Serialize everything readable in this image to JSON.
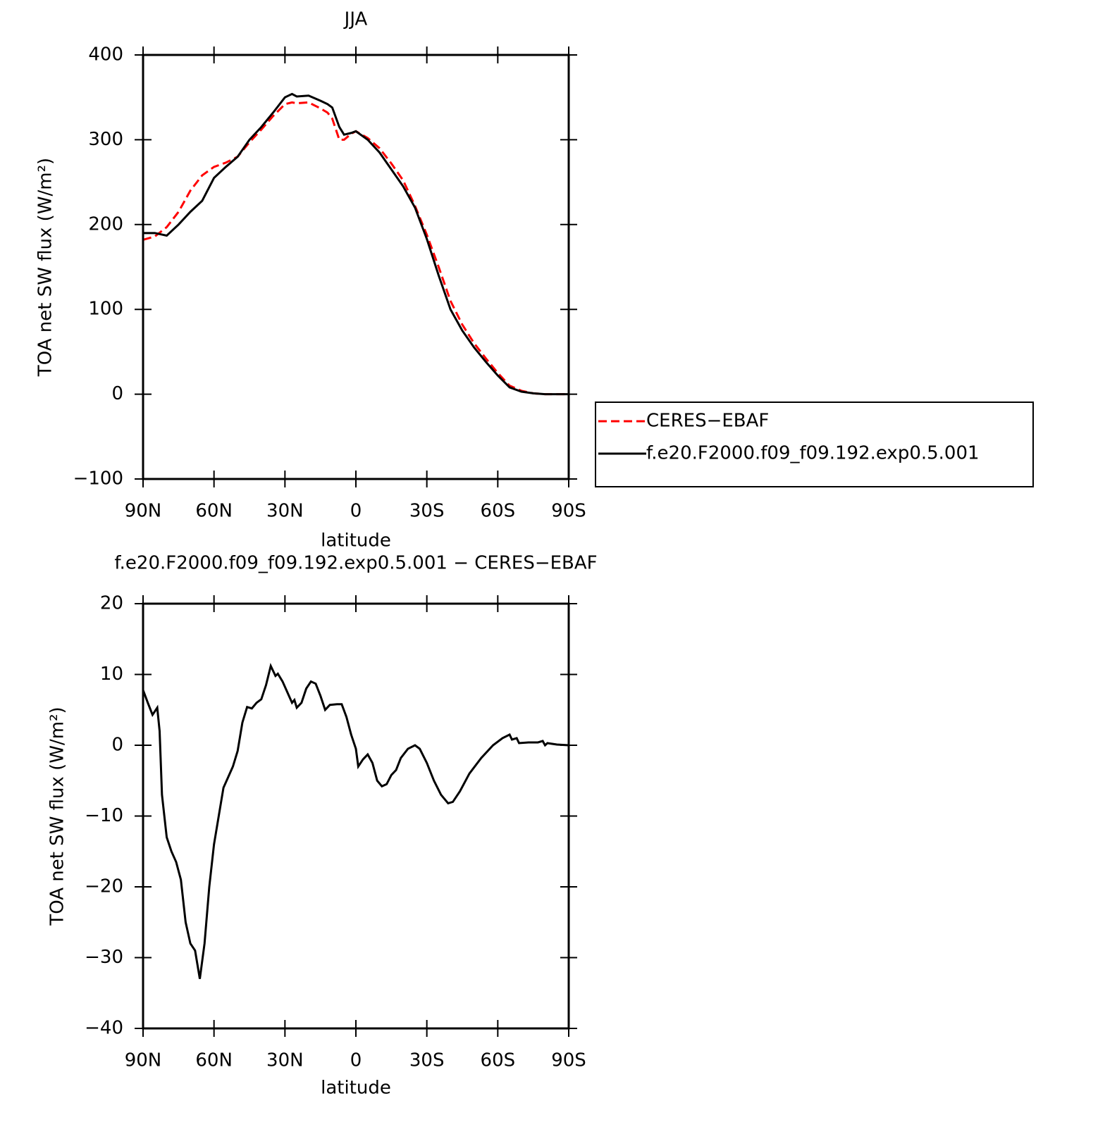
{
  "chart_data": [
    {
      "type": "line",
      "title": "JJA",
      "xlabel": "latitude",
      "ylabel": "TOA net SW flux (W/m²)",
      "x": [
        90,
        85,
        80,
        75,
        70,
        65,
        60,
        55,
        50,
        45,
        40,
        35,
        30,
        27,
        25,
        20,
        15,
        12,
        10,
        7,
        5,
        2,
        0,
        -5,
        -10,
        -15,
        -20,
        -25,
        -30,
        -35,
        -40,
        -45,
        -50,
        -55,
        -60,
        -65,
        -70,
        -75,
        -80,
        -85,
        -90
      ],
      "series": [
        {
          "name": "CERES−EBAF",
          "color": "#ff0000",
          "style": "dashed",
          "values": [
            182,
            186,
            197,
            215,
            240,
            258,
            268,
            273,
            280,
            297,
            312,
            328,
            342,
            344,
            343,
            344,
            337,
            332,
            325,
            300,
            300,
            307,
            310,
            302,
            290,
            272,
            252,
            222,
            188,
            150,
            110,
            82,
            60,
            42,
            25,
            10,
            4,
            1,
            0,
            0,
            0
          ]
        },
        {
          "name": "f.e20.F2000.f09_f09.192.exp0.5.001",
          "color": "#000000",
          "style": "solid",
          "values": [
            190,
            190,
            187,
            200,
            215,
            228,
            255,
            268,
            280,
            300,
            315,
            332,
            350,
            354,
            351,
            352,
            346,
            342,
            338,
            315,
            306,
            308,
            310,
            300,
            285,
            265,
            245,
            220,
            183,
            140,
            100,
            75,
            55,
            38,
            22,
            8,
            3,
            1,
            0,
            0,
            0
          ]
        }
      ],
      "xlim": [
        90,
        -90
      ],
      "xticks": [
        {
          "value": 90,
          "label": "90N"
        },
        {
          "value": 60,
          "label": "60N"
        },
        {
          "value": 30,
          "label": "30N"
        },
        0,
        {
          "value": -30,
          "label": "30S"
        },
        {
          "value": -60,
          "label": "60S"
        },
        {
          "value": -90,
          "label": "90S"
        }
      ],
      "ylim": [
        -100,
        400
      ],
      "yticks": [
        {
          "value": -100,
          "label": "−100"
        },
        0,
        100,
        200,
        300,
        400
      ],
      "legend": "right"
    },
    {
      "type": "line",
      "title": "f.e20.F2000.f09_f09.192.exp0.5.001 − CERES−EBAF",
      "xlabel": "latitude",
      "ylabel": "TOA net SW flux (W/m²)",
      "x": [
        90,
        88,
        86,
        84,
        83,
        82,
        80,
        78,
        76,
        74,
        72,
        70,
        68,
        67,
        66,
        64,
        62,
        60,
        58,
        56,
        54,
        52,
        50,
        48,
        46,
        44,
        42,
        40,
        38,
        36,
        35,
        34,
        33,
        31,
        29,
        27,
        26,
        25,
        23,
        21,
        19,
        17,
        15,
        13,
        11,
        8,
        6,
        4,
        2,
        0,
        -1,
        -3,
        -5,
        -7,
        -9,
        -11,
        -13,
        -15,
        -17,
        -19,
        -22,
        -25,
        -27,
        -30,
        -33,
        -36,
        -39,
        -41,
        -44,
        -48,
        -53,
        -58,
        -62,
        -65,
        -66,
        -68,
        -69,
        -73,
        -77,
        -79,
        -80,
        -81,
        -85,
        -90
      ],
      "values": [
        7.8,
        6,
        4.3,
        5.3,
        2,
        -7,
        -13,
        -15,
        -16.5,
        -19,
        -25,
        -28,
        -29,
        -31,
        -33,
        -28,
        -20,
        -14,
        -10,
        -6,
        -4.5,
        -3,
        -0.8,
        3.2,
        5.4,
        5.2,
        6,
        6.5,
        8.5,
        11.2,
        10.5,
        9.8,
        10.1,
        9,
        7.5,
        6,
        6.4,
        5.3,
        6,
        8,
        9,
        8.7,
        7,
        5,
        5.7,
        5.8,
        5.8,
        4,
        1.5,
        -0.5,
        -3,
        -2,
        -1.3,
        -2.5,
        -5,
        -5.8,
        -5.5,
        -4.2,
        -3.5,
        -1.8,
        -0.5,
        0,
        -0.5,
        -2.5,
        -5,
        -7,
        -8.2,
        -8,
        -6.5,
        -4,
        -1.8,
        0,
        1,
        1.5,
        0.8,
        1,
        0.3,
        0.4,
        0.4,
        0.6,
        0,
        0.3,
        0.1,
        0
      ],
      "color": "#000000",
      "xlim": [
        90,
        -90
      ],
      "xticks": [
        {
          "value": 90,
          "label": "90N"
        },
        {
          "value": 60,
          "label": "60N"
        },
        {
          "value": 30,
          "label": "30N"
        },
        0,
        {
          "value": -30,
          "label": "30S"
        },
        {
          "value": -60,
          "label": "60S"
        },
        {
          "value": -90,
          "label": "90S"
        }
      ],
      "ylim": [
        -40,
        20
      ],
      "yticks": [
        {
          "value": -40,
          "label": "−40"
        },
        {
          "value": -30,
          "label": "−30"
        },
        {
          "value": -20,
          "label": "−20"
        },
        {
          "value": -10,
          "label": "−10"
        },
        0,
        10,
        20
      ]
    }
  ]
}
